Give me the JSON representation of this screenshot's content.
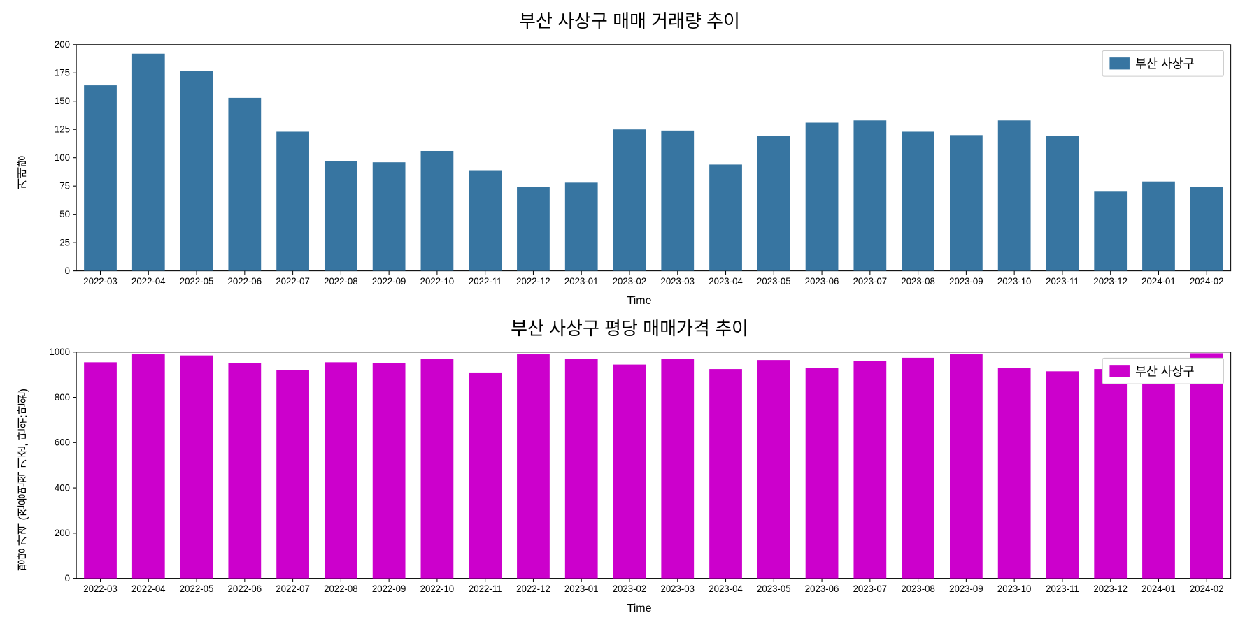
{
  "chart1": {
    "type": "bar",
    "title": "부산 사상구 매매 거래량 추이",
    "xlabel": "Time",
    "ylabel": "거래량",
    "legend_label": "부산 사상구",
    "bar_color": "#3775a1",
    "border_color": "#000000",
    "background_color": "#ffffff",
    "title_fontsize": 26,
    "label_fontsize": 16,
    "tick_fontsize": 13,
    "legend_fontsize": 17,
    "ylim": [
      0,
      200
    ],
    "ytick_step": 25,
    "yticks": [
      0,
      25,
      50,
      75,
      100,
      125,
      150,
      175,
      200
    ],
    "bar_width": 0.68,
    "categories": [
      "2022-03",
      "2022-04",
      "2022-05",
      "2022-06",
      "2022-07",
      "2022-08",
      "2022-09",
      "2022-10",
      "2022-11",
      "2022-12",
      "2023-01",
      "2023-02",
      "2023-03",
      "2023-04",
      "2023-05",
      "2023-06",
      "2023-07",
      "2023-08",
      "2023-09",
      "2023-10",
      "2023-11",
      "2023-12",
      "2024-01",
      "2024-02"
    ],
    "values": [
      164,
      192,
      177,
      153,
      123,
      97,
      96,
      106,
      89,
      74,
      78,
      125,
      124,
      94,
      119,
      131,
      133,
      123,
      120,
      133,
      119,
      70,
      79,
      74
    ]
  },
  "chart2": {
    "type": "bar",
    "title": "부산 사상구 평당 매매가격 추이",
    "xlabel": "Time",
    "ylabel": "평당 가격 (전용면적 기준, 단위:만원)",
    "legend_label": "부산 사상구",
    "bar_color": "#cc00cc",
    "border_color": "#000000",
    "background_color": "#ffffff",
    "title_fontsize": 26,
    "label_fontsize": 16,
    "tick_fontsize": 13,
    "legend_fontsize": 17,
    "ylim": [
      0,
      1000
    ],
    "ytick_step": 200,
    "yticks": [
      0,
      200,
      400,
      600,
      800,
      1000
    ],
    "bar_width": 0.68,
    "categories": [
      "2022-03",
      "2022-04",
      "2022-05",
      "2022-06",
      "2022-07",
      "2022-08",
      "2022-09",
      "2022-10",
      "2022-11",
      "2022-12",
      "2023-01",
      "2023-02",
      "2023-03",
      "2023-04",
      "2023-05",
      "2023-06",
      "2023-07",
      "2023-08",
      "2023-09",
      "2023-10",
      "2023-11",
      "2023-12",
      "2024-01",
      "2024-02"
    ],
    "values": [
      955,
      990,
      985,
      950,
      920,
      955,
      950,
      970,
      910,
      990,
      970,
      945,
      970,
      925,
      965,
      930,
      960,
      975,
      990,
      930,
      915,
      925,
      930,
      995
    ]
  }
}
